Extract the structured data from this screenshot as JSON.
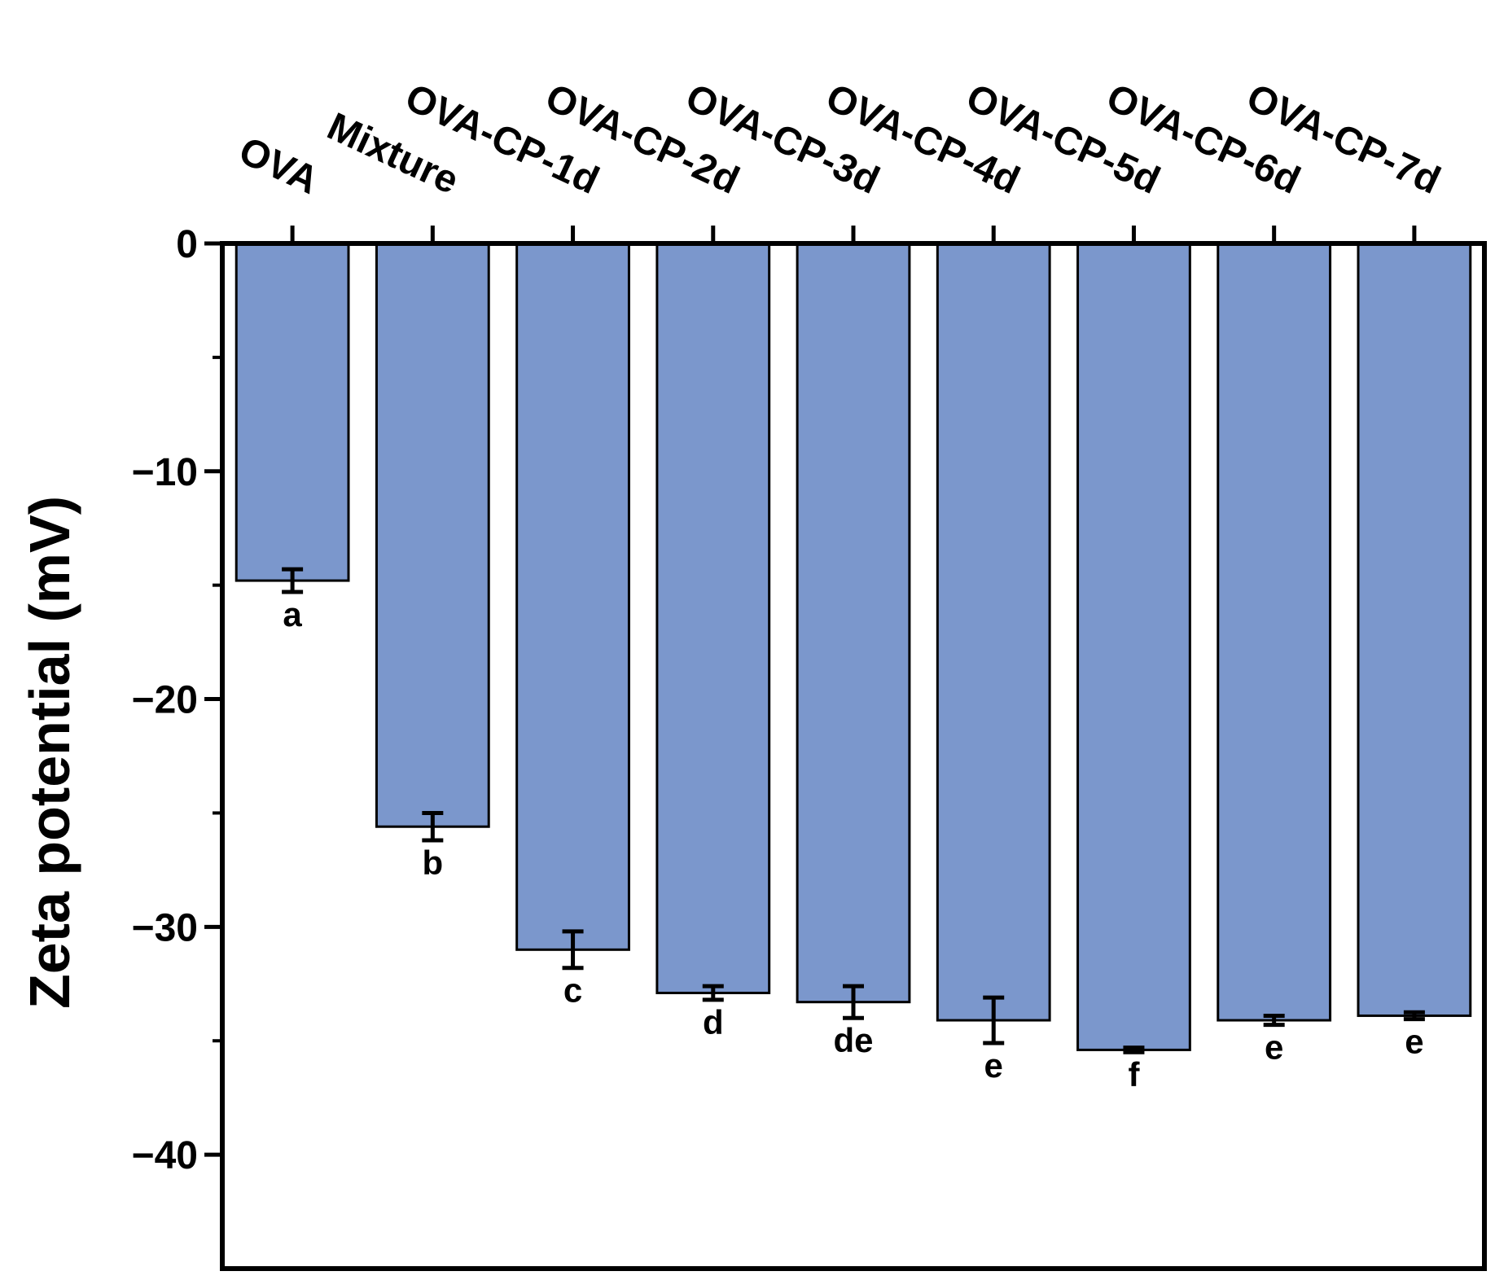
{
  "chart_data": {
    "type": "bar",
    "categories": [
      "OVA",
      "Mixture",
      "OVA-CP-1d",
      "OVA-CP-2d",
      "OVA-CP-3d",
      "OVA-CP-4d",
      "OVA-CP-5d",
      "OVA-CP-6d",
      "OVA-CP-7d"
    ],
    "values": [
      -14.8,
      -25.6,
      -31.0,
      -32.9,
      -33.3,
      -34.1,
      -35.4,
      -34.1,
      -33.9
    ],
    "errors": [
      0.5,
      0.6,
      0.8,
      0.3,
      0.7,
      1.0,
      0.1,
      0.2,
      0.15
    ],
    "significance": [
      "a",
      "b",
      "c",
      "d",
      "de",
      "e",
      "f",
      "e",
      "e"
    ],
    "ylabel": "Zeta potential (mV)",
    "xlabel": "",
    "ylim": [
      -45,
      0
    ],
    "yticks": [
      0,
      -10,
      -20,
      -30,
      -40
    ],
    "ytick_labels": [
      "0",
      "−10",
      "−20",
      "−30",
      "−40"
    ],
    "x_axis_position": "top",
    "grid": false,
    "legend": "none",
    "bar_color": "#7b97cc",
    "edge_color": "#000000"
  }
}
